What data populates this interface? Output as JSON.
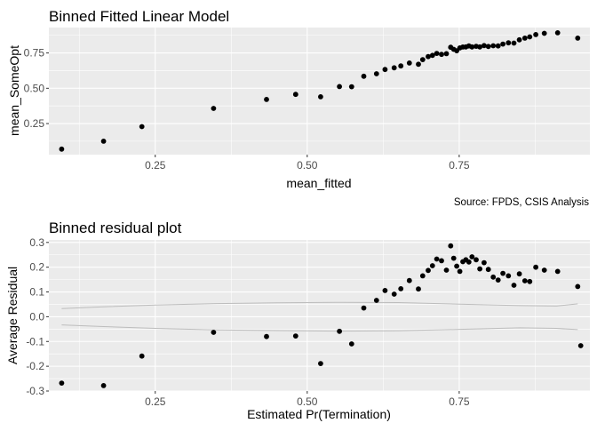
{
  "chart_data": [
    {
      "type": "scatter",
      "title": "Binned Fitted Linear Model",
      "xlabel": "mean_fitted",
      "ylabel": "mean_SomeOpt",
      "caption": "Source: FPDS, CSIS Analysis",
      "xlim": [
        0.075,
        0.965
      ],
      "ylim": [
        0.03,
        0.93
      ],
      "x_ticks": [
        0.25,
        0.5,
        0.75
      ],
      "x_tick_labels": [
        "0.25",
        "0.50",
        "0.75"
      ],
      "y_ticks": [
        0.25,
        0.5,
        0.75
      ],
      "y_tick_labels": [
        "0.25",
        "0.50",
        "0.75"
      ],
      "grid": true,
      "points": [
        [
          0.096,
          0.069
        ],
        [
          0.165,
          0.125
        ],
        [
          0.228,
          0.228
        ],
        [
          0.346,
          0.357
        ],
        [
          0.433,
          0.421
        ],
        [
          0.481,
          0.457
        ],
        [
          0.522,
          0.44
        ],
        [
          0.553,
          0.512
        ],
        [
          0.573,
          0.511
        ],
        [
          0.593,
          0.585
        ],
        [
          0.614,
          0.603
        ],
        [
          0.628,
          0.633
        ],
        [
          0.643,
          0.645
        ],
        [
          0.654,
          0.658
        ],
        [
          0.668,
          0.679
        ],
        [
          0.683,
          0.67
        ],
        [
          0.69,
          0.703
        ],
        [
          0.699,
          0.724
        ],
        [
          0.706,
          0.733
        ],
        [
          0.713,
          0.747
        ],
        [
          0.721,
          0.74
        ],
        [
          0.729,
          0.745
        ],
        [
          0.736,
          0.79
        ],
        [
          0.741,
          0.776
        ],
        [
          0.746,
          0.766
        ],
        [
          0.751,
          0.786
        ],
        [
          0.756,
          0.792
        ],
        [
          0.761,
          0.793
        ],
        [
          0.766,
          0.8
        ],
        [
          0.771,
          0.793
        ],
        [
          0.778,
          0.797
        ],
        [
          0.784,
          0.793
        ],
        [
          0.791,
          0.802
        ],
        [
          0.798,
          0.796
        ],
        [
          0.806,
          0.801
        ],
        [
          0.814,
          0.8
        ],
        [
          0.822,
          0.813
        ],
        [
          0.831,
          0.822
        ],
        [
          0.84,
          0.82
        ],
        [
          0.849,
          0.843
        ],
        [
          0.858,
          0.855
        ],
        [
          0.866,
          0.864
        ],
        [
          0.876,
          0.88
        ],
        [
          0.89,
          0.889
        ],
        [
          0.912,
          0.893
        ],
        [
          0.945,
          0.855
        ]
      ]
    },
    {
      "type": "scatter",
      "title": "Binned residual plot",
      "xlabel": "Estimated Pr(Termination)",
      "ylabel": "Average Residual",
      "xlim": [
        0.075,
        0.965
      ],
      "ylim": [
        -0.3,
        0.31
      ],
      "x_ticks": [
        0.25,
        0.5,
        0.75
      ],
      "x_tick_labels": [
        "0.25",
        "0.50",
        "0.75"
      ],
      "y_ticks": [
        -0.3,
        -0.2,
        -0.1,
        0.0,
        0.1,
        0.2,
        0.3
      ],
      "y_tick_labels": [
        "-0.3",
        "-0.2",
        "-0.1",
        "0.0",
        "0.1",
        "0.2",
        "0.3"
      ],
      "grid": true,
      "points": [
        [
          0.096,
          -0.268
        ],
        [
          0.165,
          -0.278
        ],
        [
          0.228,
          -0.159
        ],
        [
          0.346,
          -0.063
        ],
        [
          0.433,
          -0.08
        ],
        [
          0.481,
          -0.078
        ],
        [
          0.522,
          -0.189
        ],
        [
          0.553,
          -0.059
        ],
        [
          0.573,
          -0.11
        ],
        [
          0.593,
          0.035
        ],
        [
          0.614,
          0.066
        ],
        [
          0.628,
          0.106
        ],
        [
          0.643,
          0.091
        ],
        [
          0.654,
          0.113
        ],
        [
          0.668,
          0.146
        ],
        [
          0.683,
          0.112
        ],
        [
          0.69,
          0.165
        ],
        [
          0.699,
          0.187
        ],
        [
          0.706,
          0.206
        ],
        [
          0.713,
          0.233
        ],
        [
          0.721,
          0.226
        ],
        [
          0.729,
          0.188
        ],
        [
          0.736,
          0.286
        ],
        [
          0.741,
          0.236
        ],
        [
          0.746,
          0.204
        ],
        [
          0.751,
          0.183
        ],
        [
          0.756,
          0.222
        ],
        [
          0.761,
          0.23
        ],
        [
          0.766,
          0.221
        ],
        [
          0.771,
          0.242
        ],
        [
          0.778,
          0.23
        ],
        [
          0.784,
          0.193
        ],
        [
          0.791,
          0.218
        ],
        [
          0.798,
          0.191
        ],
        [
          0.806,
          0.16
        ],
        [
          0.814,
          0.148
        ],
        [
          0.822,
          0.175
        ],
        [
          0.831,
          0.165
        ],
        [
          0.84,
          0.127
        ],
        [
          0.849,
          0.173
        ],
        [
          0.858,
          0.145
        ],
        [
          0.866,
          0.142
        ],
        [
          0.876,
          0.2
        ],
        [
          0.89,
          0.188
        ],
        [
          0.912,
          0.183
        ],
        [
          0.945,
          0.122
        ],
        [
          0.95,
          -0.117
        ]
      ],
      "band_upper": [
        [
          0.096,
          0.033
        ],
        [
          0.165,
          0.04
        ],
        [
          0.25,
          0.047
        ],
        [
          0.35,
          0.053
        ],
        [
          0.45,
          0.056
        ],
        [
          0.55,
          0.058
        ],
        [
          0.65,
          0.057
        ],
        [
          0.75,
          0.051
        ],
        [
          0.85,
          0.045
        ],
        [
          0.91,
          0.043
        ],
        [
          0.945,
          0.052
        ]
      ],
      "band_lower": [
        [
          0.096,
          -0.033
        ],
        [
          0.165,
          -0.04
        ],
        [
          0.25,
          -0.047
        ],
        [
          0.35,
          -0.053
        ],
        [
          0.45,
          -0.056
        ],
        [
          0.55,
          -0.058
        ],
        [
          0.65,
          -0.057
        ],
        [
          0.75,
          -0.051
        ],
        [
          0.85,
          -0.045
        ],
        [
          0.91,
          -0.047
        ],
        [
          0.945,
          -0.052
        ]
      ]
    }
  ]
}
